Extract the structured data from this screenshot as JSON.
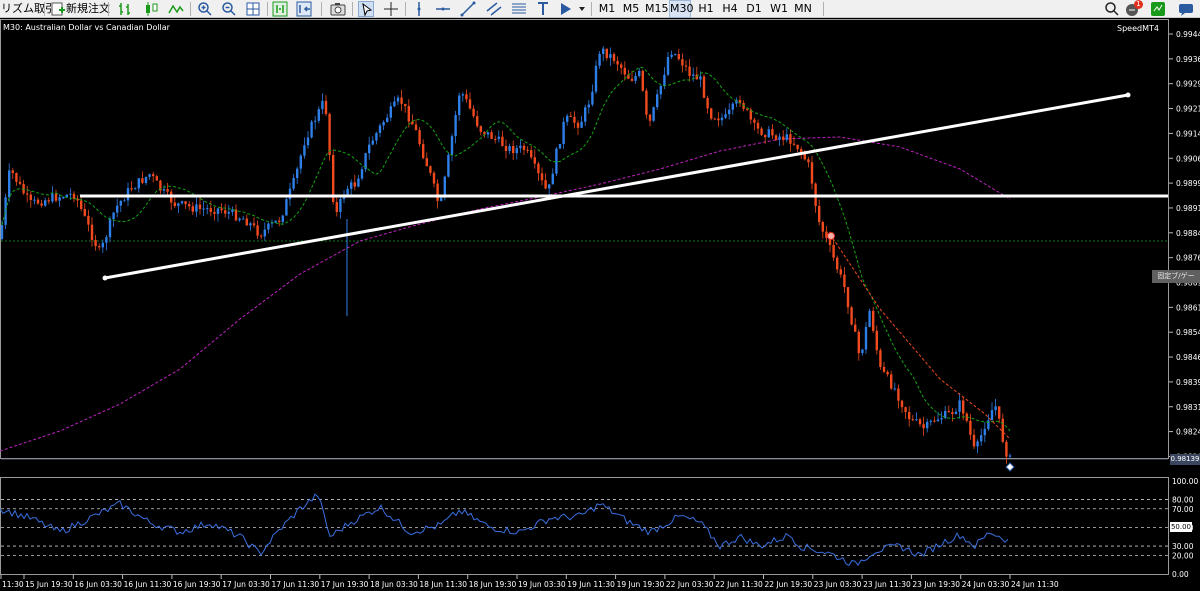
{
  "toolbar": {
    "trade_button": "リズム取引",
    "new_order_button": "新規注文",
    "timeframes": [
      {
        "label": "M1",
        "active": false
      },
      {
        "label": "M5",
        "active": false
      },
      {
        "label": "M15",
        "active": false
      },
      {
        "label": "M30",
        "active": true
      },
      {
        "label": "H1",
        "active": false
      },
      {
        "label": "H4",
        "active": false
      },
      {
        "label": "D1",
        "active": false
      },
      {
        "label": "W1",
        "active": false
      },
      {
        "label": "MN",
        "active": false
      }
    ],
    "notification_count": "1"
  },
  "chart": {
    "title": "M30: Australian Dollar vs Canadian Dollar",
    "expert_label": "SpeedMT4",
    "tag_label": "固定ブ/ゲー",
    "bid_price": "0.98139",
    "price_axis": [
      "0.99440",
      "0.99365",
      "0.99290",
      "0.99215",
      "0.99140",
      "0.99065",
      "0.98990",
      "0.98915",
      "0.98840",
      "0.98765",
      "0.98690",
      "0.98615",
      "0.98540",
      "0.98465",
      "0.98390",
      "0.98315",
      "0.98240",
      "0.98165"
    ],
    "rsi_axis": [
      "100.00",
      "80.00",
      "70.00",
      "50.00",
      "30.00",
      "20.00",
      "0.00"
    ],
    "rsi_highlight": "50.00",
    "time_axis": [
      "11:30",
      "15 Jun 19:30",
      "16 Jun 03:30",
      "16 Jun 11:30",
      "16 Jun 19:30",
      "17 Jun 03:30",
      "17 Jun 11:30",
      "17 Jun 19:30",
      "18 Jun 03:30",
      "18 Jun 11:30",
      "18 Jun 19:30",
      "19 Jun 03:30",
      "19 Jun 11:30",
      "19 Jun 19:30",
      "22 Jun 03:30",
      "22 Jun 11:30",
      "22 Jun 19:30",
      "23 Jun 03:30",
      "23 Jun 11:30",
      "23 Jun 19:30",
      "24 Jun 03:30",
      "24 Jun 11:30"
    ],
    "colors": {
      "bull": "#2f7fe8",
      "bear": "#f04a1e",
      "ma_fast": "#16a316",
      "ma_slow": "#c022c0",
      "trendline": "#ffffff",
      "rsi": "#3a6fe0",
      "grid_dash": "#c8c8c8"
    }
  }
}
